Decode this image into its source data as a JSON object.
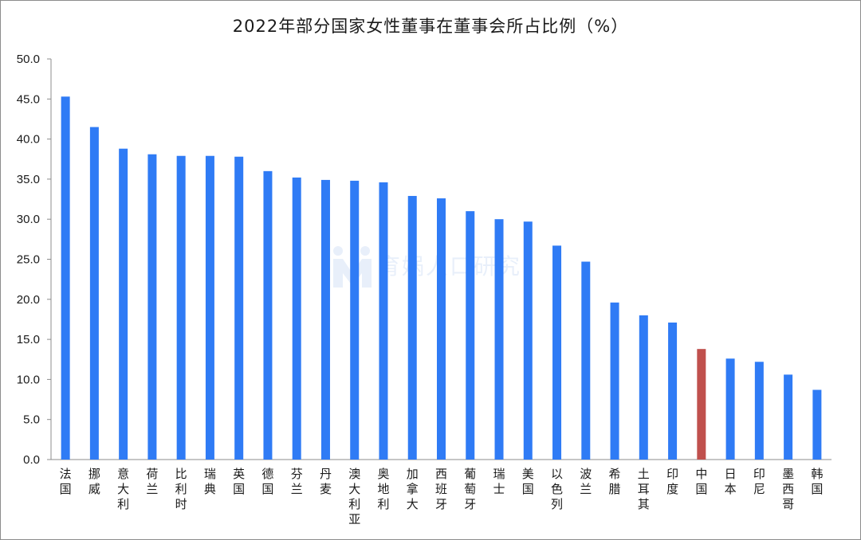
{
  "chart_data": {
    "type": "bar",
    "title": "2022年部分国家女性董事在董事会所占比例（%）",
    "xlabel": "",
    "ylabel": "",
    "ylim": [
      0,
      50
    ],
    "yticks": [
      "0.0",
      "5.0",
      "10.0",
      "15.0",
      "20.0",
      "25.0",
      "30.0",
      "35.0",
      "40.0",
      "45.0",
      "50.0"
    ],
    "grid": false,
    "legend": "none",
    "bar_color": "#2f7bf5",
    "highlight_color": "#c0504d",
    "highlight_category": "中国",
    "categories": [
      "法国",
      "挪威",
      "意大利",
      "荷兰",
      "比利时",
      "瑞典",
      "英国",
      "德国",
      "芬兰",
      "丹麦",
      "澳大利亚",
      "奥地利",
      "加拿大",
      "西班牙",
      "葡萄牙",
      "瑞士",
      "美国",
      "以色列",
      "波兰",
      "希腊",
      "土耳其",
      "印度",
      "中国",
      "日本",
      "印尼",
      "墨西哥",
      "韩国"
    ],
    "values": [
      45.3,
      41.5,
      38.8,
      38.1,
      37.9,
      37.9,
      37.8,
      36.0,
      35.2,
      34.9,
      34.8,
      34.6,
      32.9,
      32.6,
      31.0,
      30.0,
      29.7,
      26.7,
      24.7,
      19.6,
      18.0,
      17.1,
      13.8,
      12.6,
      12.2,
      10.6,
      8.7
    ]
  },
  "watermark": {
    "text": "育娲人口研究"
  }
}
